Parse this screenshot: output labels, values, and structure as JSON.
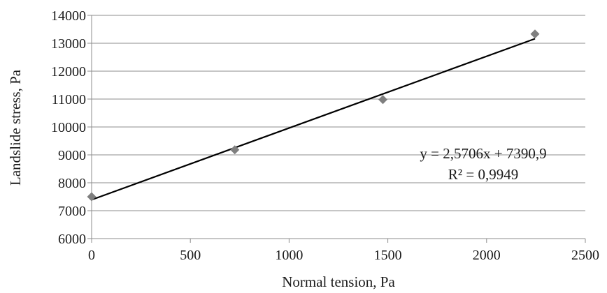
{
  "chart_data": {
    "type": "scatter",
    "title": "",
    "xlabel": "Normal tension, Pa",
    "ylabel": "Landslide stress, Pa",
    "xlim": [
      0,
      2500
    ],
    "ylim": [
      6000,
      14000
    ],
    "x_ticks": [
      "0",
      "500",
      "1000",
      "1500",
      "2000",
      "2500"
    ],
    "y_ticks": [
      "6000",
      "7000",
      "8000",
      "9000",
      "10000",
      "11000",
      "12000",
      "13000",
      "14000"
    ],
    "grid": {
      "horizontal": true,
      "vertical": false
    },
    "legend": "none",
    "marker": "diamond",
    "series": [
      {
        "points": [
          {
            "x": 0,
            "y": 7500
          },
          {
            "x": 725,
            "y": 9180
          },
          {
            "x": 1475,
            "y": 10980
          },
          {
            "x": 2245,
            "y": 13330
          }
        ],
        "color": "#7f7f7f"
      }
    ],
    "trendline": {
      "type": "linear",
      "slope": 2.5706,
      "intercept": 7390.9,
      "x_range": [
        0,
        2245
      ],
      "color": "#000000",
      "equation": "y = 2,5706x + 7390,9",
      "r_squared": "R² = 0,9949"
    }
  }
}
